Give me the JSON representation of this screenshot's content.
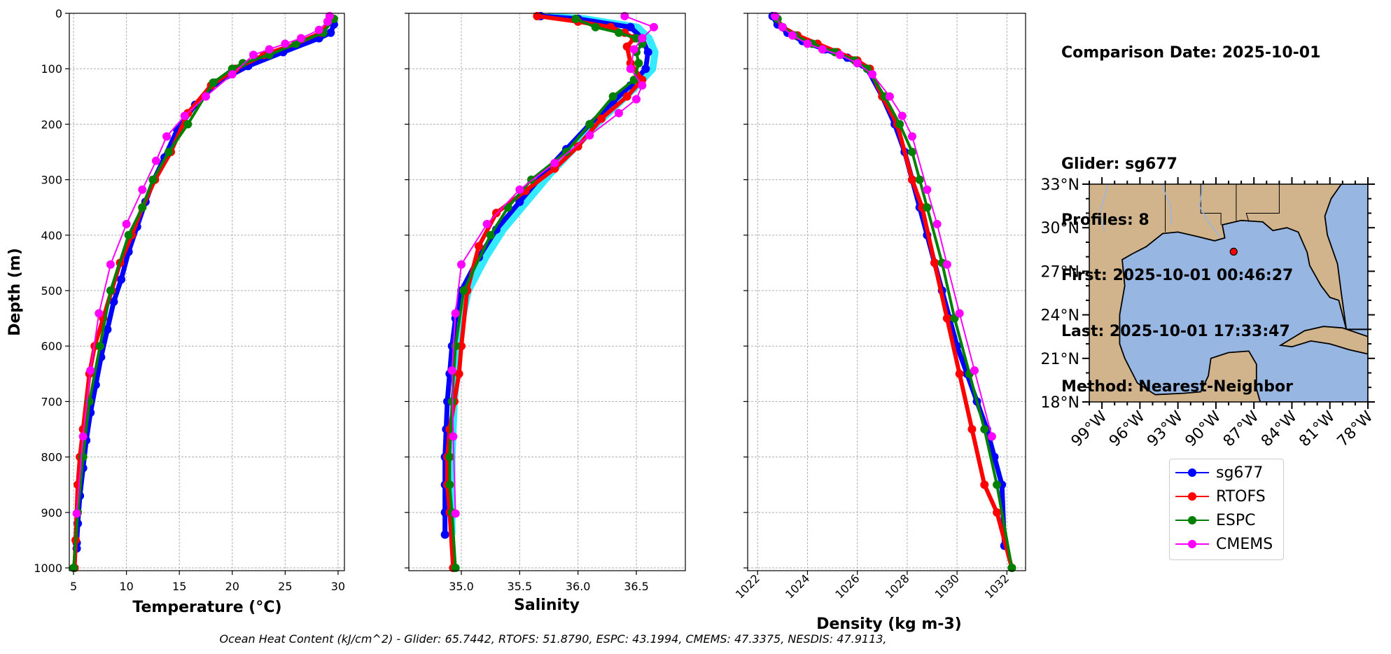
{
  "chart_data": [
    {
      "type": "line",
      "xlabel": "Temperature (°C)",
      "ylabel": "Depth (m)",
      "xlim": [
        4.6,
        30.6
      ],
      "ylim": [
        1005,
        0
      ],
      "xticks": [
        5,
        10,
        15,
        20,
        25,
        30
      ],
      "yticks": [
        0,
        100,
        200,
        300,
        400,
        500,
        600,
        700,
        800,
        900,
        1000
      ],
      "grid": true,
      "series": [
        {
          "name": "sg677",
          "color": "#0000ff",
          "x": [
            29.6,
            29.3,
            28.2,
            24.8,
            21.5,
            18.5,
            16.5,
            14.8,
            13.6,
            12.6,
            11.8,
            11.0,
            10.2,
            9.5,
            8.8,
            8.2,
            7.6,
            7.1,
            6.6,
            6.2,
            5.9,
            5.6,
            5.4,
            5.3,
            5.3
          ],
          "y": [
            20,
            35,
            45,
            70,
            95,
            125,
            165,
            210,
            260,
            300,
            340,
            385,
            430,
            480,
            520,
            570,
            620,
            670,
            720,
            770,
            820,
            870,
            920,
            955,
            965
          ]
        },
        {
          "name": "RTOFS",
          "color": "#ff0000",
          "x": [
            29.5,
            28.4,
            26.0,
            23.0,
            20.3,
            18.0,
            15.8,
            14.2,
            12.7,
            11.5,
            10.5,
            9.4,
            8.6,
            7.8,
            7.0,
            6.5,
            5.9,
            5.6,
            5.4,
            5.2,
            5.1
          ],
          "y": [
            10,
            35,
            55,
            75,
            100,
            130,
            180,
            250,
            300,
            350,
            400,
            450,
            500,
            550,
            600,
            650,
            750,
            800,
            850,
            950,
            1000
          ]
        },
        {
          "name": "ESPC",
          "color": "#008000",
          "x": [
            29.6,
            28.6,
            26.0,
            23.5,
            21.0,
            20.0,
            18.2,
            15.8,
            14.0,
            12.5,
            11.5,
            10.2,
            8.5,
            7.5,
            6.5,
            5.9,
            5.4,
            5.0
          ],
          "y": [
            10,
            35,
            55,
            75,
            90,
            100,
            125,
            200,
            250,
            300,
            350,
            400,
            500,
            600,
            700,
            800,
            900,
            1000
          ]
        },
        {
          "name": "CMEMS",
          "color": "#ff00ff",
          "x": [
            29.2,
            29.0,
            28.2,
            26.5,
            25.0,
            23.5,
            22.0,
            20.0,
            17.5,
            15.5,
            13.8,
            12.8,
            11.5,
            10.0,
            8.5,
            7.4,
            6.6,
            5.9,
            5.3
          ],
          "y": [
            5,
            15,
            30,
            45,
            55,
            65,
            75,
            110,
            150,
            185,
            222,
            266,
            318,
            380,
            453,
            541,
            644,
            763,
            902
          ]
        }
      ]
    },
    {
      "type": "line",
      "xlabel": "Salinity",
      "xlim": [
        34.55,
        36.92
      ],
      "ylim": [
        1005,
        0
      ],
      "xticks": [
        "35.0",
        "35.5",
        "36.0",
        "36.5"
      ],
      "yticks": [
        0,
        100,
        200,
        300,
        400,
        500,
        600,
        700,
        800,
        900,
        1000
      ],
      "grid": true,
      "series": [
        {
          "name": "sg677",
          "color": "#0000ff",
          "x": [
            35.68,
            36.0,
            36.45,
            36.55,
            36.6,
            36.58,
            36.45,
            36.3,
            36.1,
            35.9,
            35.7,
            35.5,
            35.3,
            35.15,
            35.0,
            34.95,
            34.92,
            34.9,
            34.88,
            34.87,
            34.86,
            34.86,
            34.86,
            34.86
          ],
          "y": [
            5,
            10,
            25,
            45,
            70,
            100,
            130,
            160,
            200,
            245,
            290,
            340,
            390,
            440,
            500,
            550,
            600,
            650,
            700,
            750,
            800,
            850,
            900,
            940
          ]
        },
        {
          "name": "RTOFS",
          "color": "#ff0000",
          "x": [
            35.65,
            36.0,
            36.28,
            36.4,
            36.48,
            36.42,
            36.45,
            36.55,
            36.42,
            36.2,
            36.0,
            35.8,
            35.55,
            35.3,
            35.15,
            35.05,
            35.0,
            34.98,
            34.94,
            34.9,
            34.88,
            34.88,
            34.9,
            34.93
          ],
          "y": [
            5,
            15,
            25,
            35,
            45,
            60,
            90,
            120,
            150,
            190,
            240,
            280,
            320,
            360,
            420,
            500,
            600,
            650,
            700,
            750,
            800,
            850,
            900,
            1000
          ]
        },
        {
          "name": "ESPC",
          "color": "#008000",
          "x": [
            35.98,
            36.15,
            36.35,
            36.5,
            36.55,
            36.5,
            36.52,
            36.48,
            36.3,
            36.1,
            35.9,
            35.6,
            35.4,
            35.25,
            35.02,
            34.95,
            34.92,
            34.9,
            34.9,
            34.92,
            34.95
          ],
          "y": [
            10,
            25,
            35,
            45,
            55,
            70,
            90,
            120,
            150,
            200,
            250,
            300,
            350,
            400,
            500,
            600,
            700,
            800,
            850,
            900,
            1000
          ]
        },
        {
          "name": "CMEMS",
          "color": "#ff00ff",
          "x": [
            36.4,
            36.65,
            36.55,
            36.48,
            36.45,
            36.55,
            36.5,
            36.35,
            36.1,
            35.8,
            35.5,
            35.22,
            35.0,
            34.95,
            34.92,
            34.93,
            34.95
          ],
          "y": [
            5,
            25,
            45,
            65,
            100,
            130,
            155,
            180,
            220,
            270,
            318,
            380,
            453,
            541,
            644,
            763,
            902
          ]
        }
      ]
    },
    {
      "type": "line",
      "xlabel": "Density (kg m-3)",
      "xlim": [
        1021.6,
        1032.75
      ],
      "ylim": [
        1005,
        0
      ],
      "xticks": [
        1022,
        1024,
        1026,
        1028,
        1030,
        1032
      ],
      "yticks": [
        0,
        100,
        200,
        300,
        400,
        500,
        600,
        700,
        800,
        900,
        1000
      ],
      "grid": true,
      "series": [
        {
          "name": "sg677",
          "color": "#0000ff",
          "x": [
            1022.6,
            1022.8,
            1023.2,
            1023.8,
            1024.7,
            1025.6,
            1026.4,
            1027.0,
            1027.5,
            1027.9,
            1028.2,
            1028.5,
            1028.8,
            1029.1,
            1029.4,
            1029.7,
            1030.0,
            1030.4,
            1030.8,
            1031.2,
            1031.5,
            1031.8,
            1031.9
          ],
          "y": [
            5,
            20,
            35,
            50,
            65,
            80,
            100,
            150,
            200,
            250,
            300,
            350,
            400,
            450,
            500,
            550,
            600,
            650,
            700,
            750,
            800,
            850,
            960
          ]
        },
        {
          "name": "RTOFS",
          "color": "#ff0000",
          "x": [
            1022.7,
            1023.0,
            1023.6,
            1024.4,
            1025.2,
            1026.0,
            1026.5,
            1027.0,
            1027.6,
            1028.2,
            1028.6,
            1029.1,
            1029.6,
            1030.1,
            1030.6,
            1031.1,
            1031.6,
            1032.2
          ],
          "y": [
            5,
            25,
            40,
            55,
            70,
            85,
            100,
            150,
            200,
            300,
            350,
            450,
            550,
            650,
            750,
            850,
            900,
            1000
          ]
        },
        {
          "name": "ESPC",
          "color": "#008000",
          "x": [
            1022.8,
            1023.0,
            1023.5,
            1024.2,
            1025.1,
            1025.9,
            1026.4,
            1027.1,
            1027.7,
            1028.2,
            1028.5,
            1028.8,
            1029.4,
            1029.9,
            1030.5,
            1031.1,
            1031.6,
            1032.2
          ],
          "y": [
            10,
            25,
            40,
            55,
            70,
            85,
            100,
            150,
            200,
            250,
            300,
            350,
            450,
            550,
            650,
            750,
            850,
            1000
          ]
        },
        {
          "name": "CMEMS",
          "color": "#ff00ff",
          "x": [
            1022.7,
            1023.0,
            1023.4,
            1024.0,
            1024.6,
            1025.3,
            1026.0,
            1026.6,
            1027.3,
            1027.8,
            1028.2,
            1028.8,
            1029.2,
            1029.6,
            1030.1,
            1030.7,
            1031.4
          ],
          "y": [
            5,
            25,
            40,
            55,
            65,
            75,
            90,
            110,
            150,
            185,
            222,
            318,
            380,
            453,
            541,
            644,
            763
          ]
        }
      ]
    }
  ],
  "info_lines": [
    "Comparison Date: 2025-10-01",
    "",
    "Glider: sg677",
    "Profiles: 8",
    "First: 2025-10-01 00:46:27",
    "Last: 2025-10-01 17:33:47",
    "Method: Nearest-Neighbor"
  ],
  "map": {
    "lat_labels": [
      "33°N",
      "30°N",
      "27°N",
      "24°N",
      "21°N",
      "18°N"
    ],
    "lon_labels": [
      "99°W",
      "96°W",
      "93°W",
      "90°W",
      "87°W",
      "84°W",
      "81°W",
      "78°W"
    ],
    "glider_position": {
      "lon": -88.6,
      "lat": 28.35
    },
    "colors": {
      "land": "#d2b48c",
      "ocean": "#97b6e1",
      "coast": "#000000",
      "marker": "#ff0000"
    }
  },
  "legend": [
    {
      "label": "sg677",
      "color": "#0000ff"
    },
    {
      "label": "RTOFS",
      "color": "#ff0000"
    },
    {
      "label": "ESPC",
      "color": "#008000"
    },
    {
      "label": "CMEMS",
      "color": "#ff00ff"
    }
  ],
  "footer": "Ocean Heat Content (kJ/cm^2) - Glider: 65.7442,  RTOFS: 51.8790,  ESPC: 43.1994,  CMEMS: 47.3375,  NESDIS: 47.9113,"
}
